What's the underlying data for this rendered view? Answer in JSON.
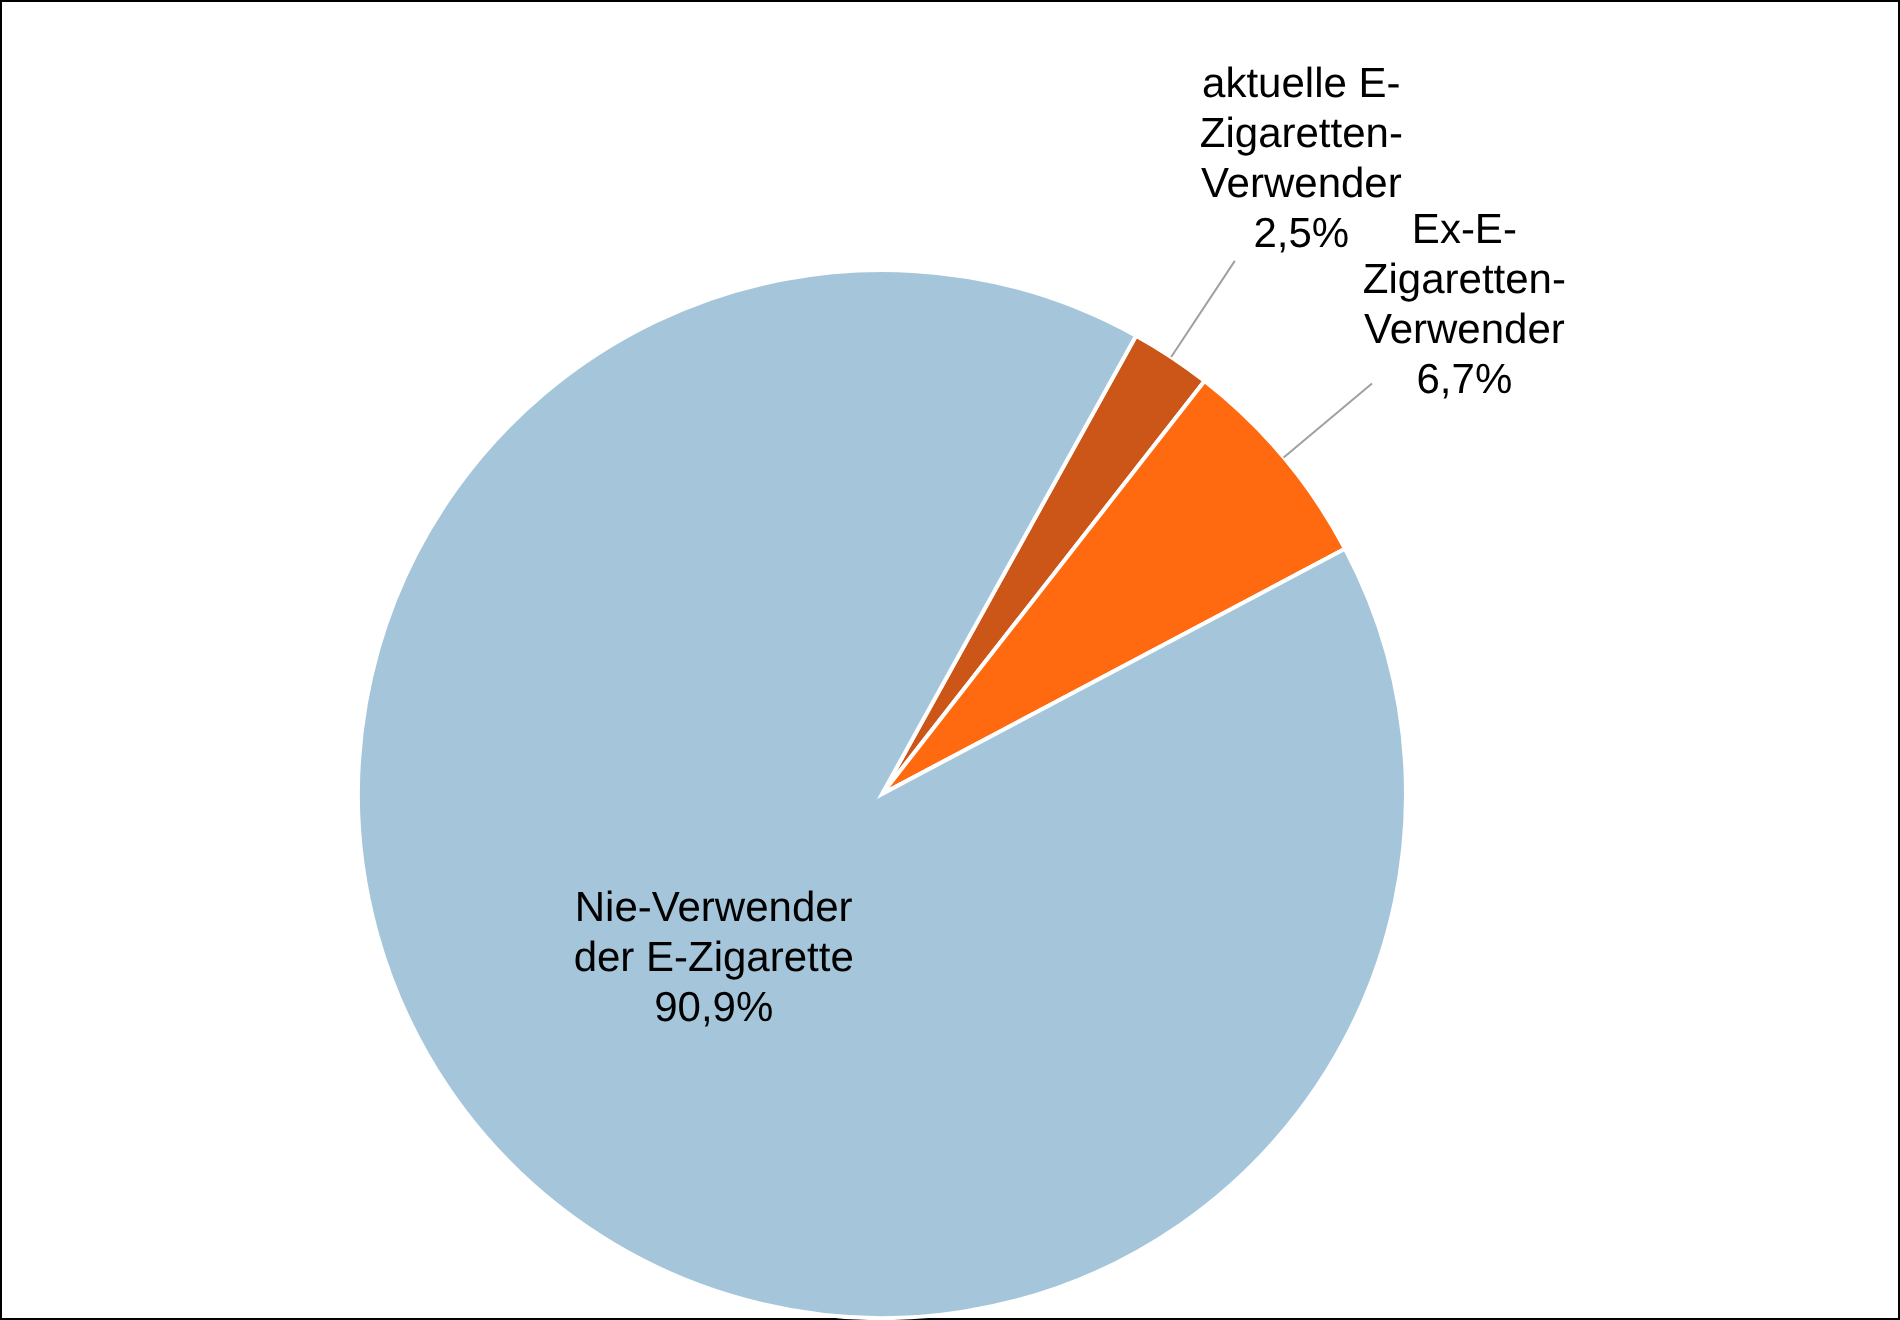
{
  "chart_data": {
    "type": "pie",
    "categories": [
      "aktuelle E-Zigaretten-Verwender",
      "Ex-E-Zigaretten-Verwender",
      "Nie-Verwender der E-Zigarette"
    ],
    "values": [
      2.5,
      6.7,
      90.9
    ],
    "colors": [
      "#cc5518",
      "#ff6a10",
      "#a5c6da"
    ],
    "value_labels": [
      "2,5%",
      "6,7%",
      "90,9%"
    ]
  }
}
